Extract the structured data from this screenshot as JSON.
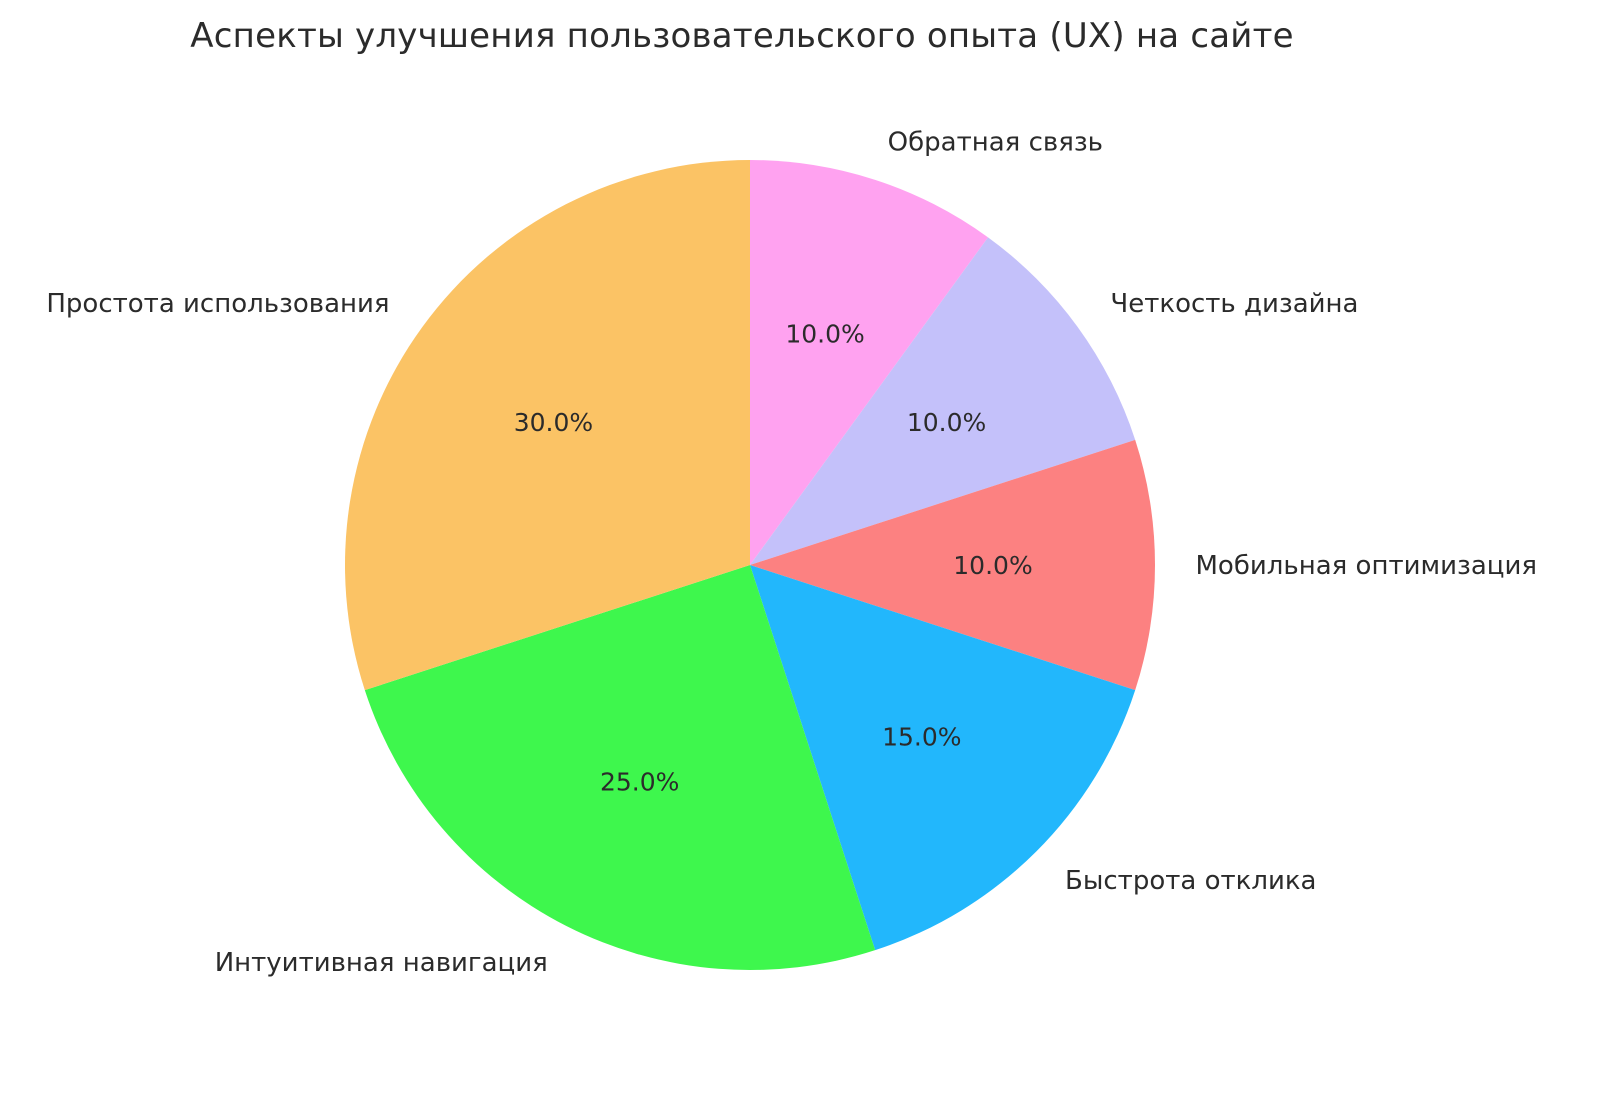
{
  "title": "Аспекты улучшения пользовательского опыта (UX) на сайте",
  "chart_data": {
    "type": "pie",
    "title": "Аспекты улучшения пользовательского опыта (UX) на сайте",
    "legend": "none",
    "background": "#ffffff",
    "text_color": "#2b2b2b",
    "start_angle_deg": 90,
    "clockwise": true,
    "label_radius_ratio": 1.1,
    "percent_radius_ratio": 0.6,
    "slices": [
      {
        "label": "Обратная связь",
        "value": 10.0,
        "percent_label": "10.0%",
        "color": "#ffa2f0"
      },
      {
        "label": "Четкость дизайна",
        "value": 10.0,
        "percent_label": "10.0%",
        "color": "#c4c1fa"
      },
      {
        "label": "Мобильная оптимизация",
        "value": 10.0,
        "percent_label": "10.0%",
        "color": "#fc8181"
      },
      {
        "label": "Быстрота отклика",
        "value": 15.0,
        "percent_label": "15.0%",
        "color": "#22b7fc"
      },
      {
        "label": "Интуитивная навигация",
        "value": 25.0,
        "percent_label": "25.0%",
        "color": "#3ef74d"
      },
      {
        "label": "Простота использования",
        "value": 30.0,
        "percent_label": "30.0%",
        "color": "#fbc365"
      }
    ]
  }
}
